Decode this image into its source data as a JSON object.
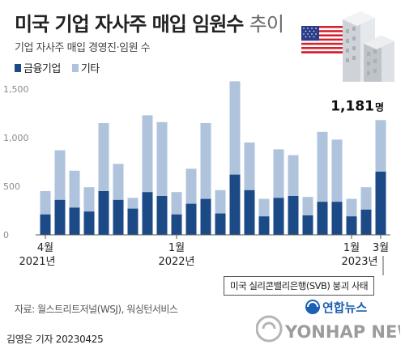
{
  "header": {
    "title": "미국 기업 자사주 매입 임원수",
    "title_suffix": "추이",
    "subtitle": "기업 자사주 매입 경영진·임원 수"
  },
  "colors": {
    "finance": "#1b4a87",
    "other": "#afc3dd",
    "axis": "#555555"
  },
  "chart_data": {
    "type": "bar",
    "stacked": true,
    "ylim": [
      0,
      1600
    ],
    "yticks": [
      "0",
      "500",
      "1,000",
      "1,500"
    ],
    "ytick_values": [
      0,
      500,
      1000,
      1500
    ],
    "x_tick_labels": [
      {
        "index": 0,
        "month": "4월",
        "year": "2021년"
      },
      {
        "index": 9,
        "month": "1월",
        "year": "2022년"
      },
      {
        "index": 21,
        "month": "1월",
        "year": "2023년"
      },
      {
        "index": 23,
        "month": "3월",
        "year": ""
      }
    ],
    "series": [
      {
        "name": "금융기업",
        "values": [
          210,
          360,
          280,
          240,
          450,
          360,
          270,
          440,
          400,
          210,
          320,
          370,
          220,
          620,
          460,
          190,
          380,
          400,
          200,
          340,
          340,
          190,
          260,
          650
        ]
      },
      {
        "name": "기타",
        "values": [
          240,
          510,
          380,
          250,
          700,
          370,
          110,
          790,
          760,
          230,
          360,
          780,
          240,
          960,
          490,
          180,
          500,
          420,
          190,
          720,
          640,
          180,
          230,
          531
        ]
      }
    ],
    "totals": [
      450,
      870,
      660,
      490,
      1150,
      730,
      380,
      1230,
      1160,
      440,
      680,
      1150,
      460,
      1580,
      950,
      370,
      880,
      820,
      390,
      1060,
      980,
      370,
      490,
      1181
    ],
    "highlight": {
      "index": 23,
      "value": "1,181",
      "unit": "명"
    }
  },
  "annotation": "미국 실리콘밸리은행(SVB) 붕괴 사태",
  "source": "자료: 월스트리트저널(WSJ), 워싱턴서비스",
  "byline": {
    "author": "김영은 기자",
    "date": "20230425"
  },
  "logo": {
    "name": "연합뉴스",
    "english": "YONHAP NEWS"
  }
}
